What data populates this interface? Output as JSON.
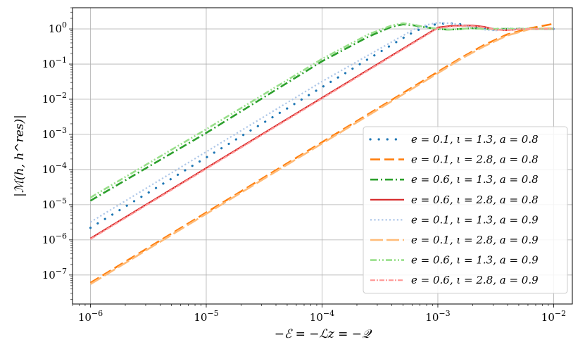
{
  "chart_data": {
    "type": "line",
    "xscale": "log",
    "yscale": "log",
    "xlim": [
      7e-07,
      0.0145
    ],
    "ylim": [
      1.5e-08,
      4.0
    ],
    "grid": true,
    "xlabel": "−ℰ = −ℒz = −𝒬",
    "ylabel": "|ℳ(h, h^res)|",
    "legend_position": "bottom-right",
    "x_ticks": [
      {
        "value": 1e-06,
        "base": "10",
        "exp": "−6"
      },
      {
        "value": 1e-05,
        "base": "10",
        "exp": "−5"
      },
      {
        "value": 0.0001,
        "base": "10",
        "exp": "−4"
      },
      {
        "value": 0.001,
        "base": "10",
        "exp": "−3"
      },
      {
        "value": 0.01,
        "base": "10",
        "exp": "−2"
      }
    ],
    "y_ticks": [
      {
        "value": 1e-07,
        "base": "10",
        "exp": "−7"
      },
      {
        "value": 1e-06,
        "base": "10",
        "exp": "−6"
      },
      {
        "value": 1e-05,
        "base": "10",
        "exp": "−5"
      },
      {
        "value": 0.0001,
        "base": "10",
        "exp": "−4"
      },
      {
        "value": 0.001,
        "base": "10",
        "exp": "−3"
      },
      {
        "value": 0.01,
        "base": "10",
        "exp": "−2"
      },
      {
        "value": 0.1,
        "base": "10",
        "exp": "−1"
      },
      {
        "value": 1,
        "base": "10",
        "exp": "0"
      }
    ],
    "series": [
      {
        "name": "e = 0.1, ι = 1.3, a = 0.8",
        "color": "#1f77b4",
        "style": "dotted-big",
        "x": [
          1e-06,
          1.259e-06,
          1.585e-06,
          1.995e-06,
          2.512e-06,
          3.162e-06,
          3.981e-06,
          5.012e-06,
          6.31e-06,
          7.943e-06,
          1e-05,
          1.259e-05,
          1.585e-05,
          1.995e-05,
          2.512e-05,
          3.162e-05,
          3.981e-05,
          5.012e-05,
          6.31e-05,
          7.943e-05,
          0.0001,
          0.0001259,
          0.0001585,
          0.0001995,
          0.0002512,
          0.0003162,
          0.0003981,
          0.0005012,
          0.000631,
          0.0007943,
          0.001,
          0.001259,
          0.001585,
          0.001995,
          0.002512,
          0.003162,
          0.003981,
          0.005012,
          0.00631,
          0.007943,
          0.01
        ],
        "y": [
          2.2e-06,
          3.5e-06,
          5.5e-06,
          8.8e-06,
          1.4e-05,
          2.2e-05,
          3.5e-05,
          5.5e-05,
          8.8e-05,
          0.00014,
          0.00022,
          0.00035,
          0.00055,
          0.00088,
          0.0014,
          0.0022,
          0.0035,
          0.0055,
          0.0088,
          0.014,
          0.022,
          0.035,
          0.055,
          0.088,
          0.14,
          0.22,
          0.35,
          0.55,
          0.85,
          1.15,
          1.4,
          1.45,
          1.35,
          1.15,
          1.0,
          0.95,
          1.0,
          1.0,
          1.0,
          1.0,
          1.0
        ]
      },
      {
        "name": "e = 0.1, ι = 2.8, a = 0.8",
        "color": "#ff7f0e",
        "style": "dashed",
        "x": [
          1e-06,
          1e-05,
          0.0001,
          0.001,
          0.001585,
          0.002512,
          0.003981,
          0.00631,
          0.01
        ],
        "y": [
          6e-08,
          6e-06,
          0.0006,
          0.06,
          0.15,
          0.35,
          0.7,
          1.05,
          1.4
        ]
      },
      {
        "name": "e = 0.6, ι = 1.3, a = 0.8",
        "color": "#2ca02c",
        "style": "dashdot",
        "x": [
          1e-06,
          1e-05,
          0.0001,
          0.0002512,
          0.0003981,
          0.0005012,
          0.000631,
          0.0007943,
          0.001,
          0.001259,
          0.001585,
          0.001995,
          0.002512,
          0.003981,
          0.00631,
          0.01
        ],
        "y": [
          1.3e-05,
          0.0011,
          0.12,
          0.6,
          1.15,
          1.35,
          1.25,
          1.1,
          1.0,
          0.95,
          1.0,
          1.05,
          1.0,
          1.0,
          1.0,
          1.0
        ]
      },
      {
        "name": "e = 0.6, ι = 2.8, a = 0.8",
        "color": "#d62728",
        "style": "solid",
        "x": [
          1e-06,
          1e-05,
          0.0001,
          0.001,
          0.001259,
          0.001585,
          0.001995,
          0.002512,
          0.003162,
          0.003981,
          0.005012,
          0.00631,
          0.01
        ],
        "y": [
          1.1e-06,
          0.00011,
          0.011,
          1.1,
          1.2,
          1.25,
          1.25,
          1.15,
          0.95,
          0.92,
          0.98,
          1.0,
          1.0
        ]
      },
      {
        "name": "e = 0.1, ι = 1.3, a = 0.9",
        "color": "#aec7e8",
        "style": "dotted",
        "x": [
          1e-06,
          1e-05,
          0.0001,
          0.000631,
          0.0007943,
          0.001,
          0.001259,
          0.001585,
          0.001995,
          0.002512,
          0.003162,
          0.003981,
          0.00631,
          0.01
        ],
        "y": [
          3.2e-06,
          0.00032,
          0.032,
          1.0,
          1.3,
          1.5,
          1.45,
          1.3,
          1.1,
          0.95,
          0.9,
          1.0,
          1.0,
          1.0
        ]
      },
      {
        "name": "e = 0.1, ι = 2.8, a = 0.9",
        "color": "#ffbb78",
        "style": "longdash",
        "x": [
          1e-06,
          1e-05,
          0.0001,
          0.001,
          0.001585,
          0.002512,
          0.003981,
          0.00631,
          0.01
        ],
        "y": [
          5.5e-08,
          5.5e-06,
          0.00055,
          0.055,
          0.14,
          0.32,
          0.65,
          1.0,
          1.05
        ]
      },
      {
        "name": "e = 0.6, ι = 1.3, a = 0.9",
        "color": "#98df8a",
        "style": "dashdotdot",
        "x": [
          1e-06,
          1e-05,
          0.0001,
          0.0002512,
          0.0003981,
          0.0005012,
          0.000631,
          0.0007943,
          0.001,
          0.001259,
          0.001585,
          0.001995,
          0.002512,
          0.003981,
          0.00631,
          0.01
        ],
        "y": [
          1.6e-05,
          0.0014,
          0.14,
          0.7,
          1.25,
          1.45,
          1.3,
          1.1,
          1.0,
          0.95,
          1.0,
          1.05,
          1.0,
          1.0,
          1.0,
          1.0
        ]
      },
      {
        "name": "e = 0.6, ι = 2.8, a = 0.9",
        "color": "#ff9896",
        "style": "dashdot-fine",
        "x": [
          1e-06,
          1e-05,
          0.0001,
          0.001,
          0.001259,
          0.001585,
          0.001995,
          0.002512,
          0.003162,
          0.003981,
          0.005012,
          0.00631,
          0.01
        ],
        "y": [
          1.05e-06,
          0.000105,
          0.0105,
          1.05,
          1.15,
          1.2,
          1.2,
          1.1,
          0.95,
          0.92,
          0.98,
          1.0,
          1.0
        ]
      }
    ]
  }
}
